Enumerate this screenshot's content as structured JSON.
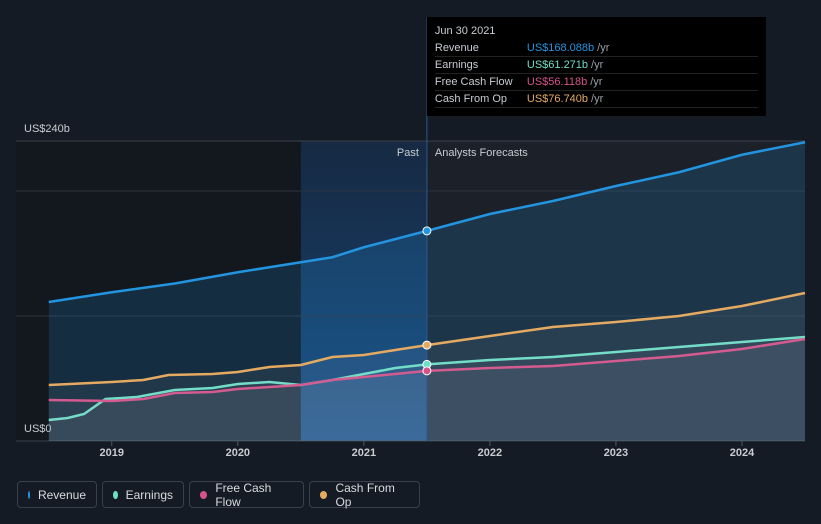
{
  "chart_data": {
    "type": "area",
    "past_label": "Past",
    "forecast_label": "Analysts Forecasts",
    "xlim": [
      2018.24,
      2024.5
    ],
    "xticks": [
      2019,
      2020,
      2021,
      2022,
      2023,
      2024
    ],
    "ylim": [
      0,
      240
    ],
    "yticks": [
      {
        "value": 0,
        "label": "US$0"
      },
      {
        "value": 240,
        "label": "US$240b"
      }
    ],
    "gridlines": [
      100,
      200,
      240
    ],
    "past_start": 2020.5,
    "past_end": 2021.5,
    "series": [
      {
        "name": "Revenue",
        "color": "#2394df",
        "x": [
          2018.5,
          2019,
          2019.5,
          2020,
          2020.5,
          2020.75,
          2021,
          2021.5,
          2022,
          2022.5,
          2023,
          2023.5,
          2024,
          2024.5
        ],
        "values": [
          111.2,
          119,
          126,
          135,
          143,
          147,
          155,
          168.1,
          181.6,
          192,
          204,
          215,
          229,
          239
        ]
      },
      {
        "name": "Earnings",
        "color": "#6ddfc6",
        "x": [
          2018.5,
          2018.65,
          2018.78,
          2018.95,
          2019.2,
          2019.5,
          2019.8,
          2020,
          2020.25,
          2020.5,
          2020.75,
          2021,
          2021.25,
          2021.5,
          2022,
          2022.5,
          2023,
          2023.5,
          2024,
          2024.5
        ],
        "values": [
          16.8,
          18.4,
          21.6,
          33.6,
          35.2,
          40.8,
          42.4,
          45.6,
          47.2,
          44.8,
          48.8,
          53.6,
          58.4,
          61.3,
          64.8,
          67.2,
          71.2,
          75.2,
          79.2,
          83.2
        ]
      },
      {
        "name": "Free Cash Flow",
        "color": "#d6538a",
        "x": [
          2018.5,
          2019,
          2019.25,
          2019.5,
          2019.8,
          2020,
          2020.5,
          2020.75,
          2021,
          2021.5,
          2022,
          2022.5,
          2023,
          2023.5,
          2024,
          2024.5
        ],
        "values": [
          32.8,
          32,
          33.6,
          38.4,
          39.2,
          41.6,
          44.8,
          48.8,
          51.2,
          56.1,
          58.4,
          60,
          64,
          68,
          73.6,
          81.6
        ]
      },
      {
        "name": "Cash From Op",
        "color": "#e5aa62",
        "x": [
          2018.5,
          2019,
          2019.25,
          2019.45,
          2019.8,
          2020,
          2020.25,
          2020.5,
          2020.75,
          2021,
          2021.25,
          2021.5,
          2022,
          2022.5,
          2023,
          2023.5,
          2024,
          2024.5
        ],
        "values": [
          44.8,
          47.2,
          48.8,
          52.8,
          53.6,
          55.2,
          59.2,
          60.8,
          67.2,
          68.8,
          72.8,
          76.7,
          84,
          91.2,
          95.2,
          100,
          108,
          118.4
        ]
      }
    ],
    "tooltip": {
      "date": "Jun 30 2021",
      "x": 2021.5,
      "unit": "/yr",
      "values": [
        168.088,
        61.271,
        56.118,
        76.74
      ],
      "value_labels": [
        "US$168.088b",
        "US$61.271b",
        "US$56.118b",
        "US$76.740b"
      ]
    }
  }
}
